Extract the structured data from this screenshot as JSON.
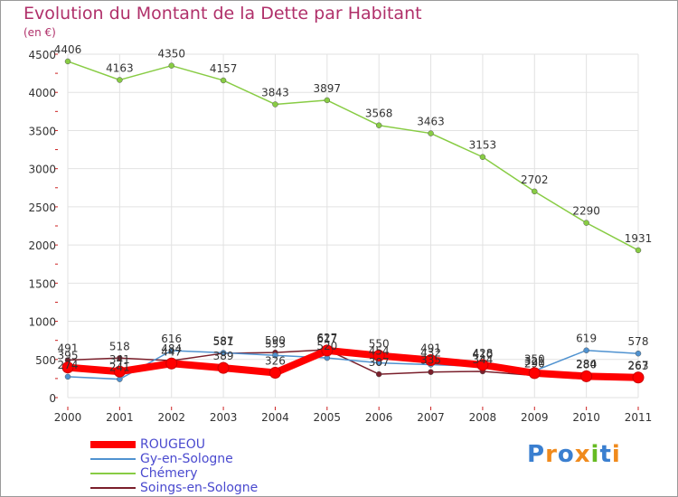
{
  "chart_data": {
    "type": "line",
    "title": "Evolution du Montant de la Dette par Habitant",
    "subtitle": "(en €)",
    "x": [
      "2000",
      "2001",
      "2002",
      "2003",
      "2004",
      "2005",
      "2006",
      "2007",
      "2008",
      "2009",
      "2010",
      "2011"
    ],
    "yticks": [
      "0",
      "500",
      "1000",
      "1500",
      "2000",
      "2500",
      "3000",
      "3500",
      "4000",
      "4500"
    ],
    "ylim": [
      0,
      4500
    ],
    "series": [
      {
        "name": "ROUGEOU",
        "color": "#ff0000",
        "values": [
          395,
          341,
          447,
          389,
          326,
          617,
          550,
          491,
          428,
          321,
          280,
          263
        ],
        "labels": [
          "395",
          "341",
          "447",
          "389",
          "326",
          "617",
          "550",
          "491",
          "428",
          "321",
          "280",
          "263"
        ]
      },
      {
        "name": "Gy-en-Sologne",
        "color": "#4f92d0",
        "values": [
          274,
          241,
          616,
          587,
          553,
          520,
          454,
          432,
          410,
          350,
          619,
          578
        ],
        "labels": [
          "274",
          "241",
          "616",
          "587",
          "553",
          "520",
          "454",
          "432",
          "410",
          "350",
          "619",
          "578"
        ]
      },
      {
        "name": "Chémery",
        "color": "#88cc44",
        "values": [
          4406,
          4163,
          4350,
          4157,
          3843,
          3897,
          3568,
          3463,
          3153,
          2702,
          2290,
          1931
        ],
        "labels": [
          "4406",
          "4163",
          "4350",
          "4157",
          "3843",
          "3897",
          "3568",
          "3463",
          "3153",
          "2702",
          "2290",
          "1931"
        ]
      },
      {
        "name": "Soings-en-Sologne",
        "color": "#7a1f2b",
        "values": [
          491,
          518,
          484,
          581,
          590,
          627,
          307,
          335,
          344,
          290,
          284,
          267
        ],
        "labels": [
          "491",
          "518",
          "484",
          "581",
          "590",
          "627",
          "307",
          "335",
          "344",
          "290",
          "284",
          "267"
        ]
      }
    ]
  },
  "legend": {
    "items": [
      {
        "label": "ROUGEOU",
        "color": "#ff0000"
      },
      {
        "label": "Gy-en-Sologne",
        "color": "#4f92d0"
      },
      {
        "label": "Chémery",
        "color": "#88cc44"
      },
      {
        "label": "Soings-en-Sologne",
        "color": "#7a1f2b"
      }
    ]
  },
  "logo": {
    "letters": [
      "P",
      "r",
      "o",
      "x",
      "i",
      "t",
      "i"
    ],
    "colors": [
      "#3a7fd0",
      "#f08a1c",
      "#3a7fd0",
      "#f08a1c",
      "#66bb22",
      "#3a7fd0",
      "#f08a1c"
    ]
  }
}
